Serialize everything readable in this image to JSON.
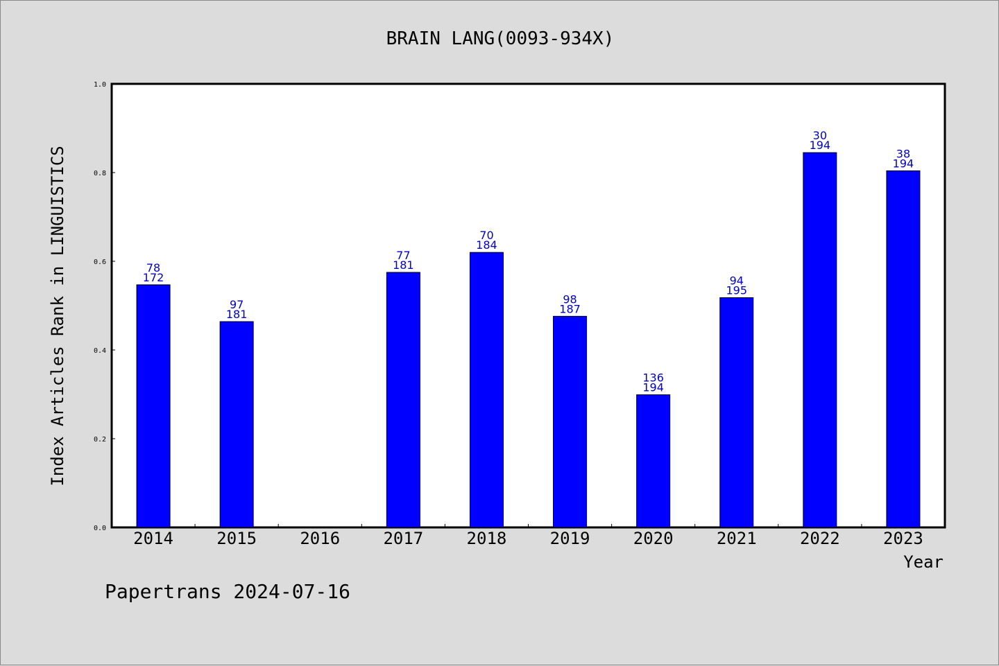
{
  "chart_data": {
    "type": "bar",
    "title": "BRAIN LANG(0093-934X)",
    "xlabel": "Year",
    "ylabel": "Index Articles Rank in LINGUISTICS",
    "ylim": [
      0,
      1.0
    ],
    "yticks": [
      "0.0",
      "0.2",
      "0.4",
      "0.6",
      "0.8",
      "1.0"
    ],
    "grid": false,
    "bar_color": "#0000ff",
    "label_color": "#0000cc",
    "categories": [
      "2014",
      "2015",
      "2016",
      "2017",
      "2018",
      "2019",
      "2020",
      "2021",
      "2022",
      "2023"
    ],
    "values": [
      0.547,
      0.464,
      null,
      0.575,
      0.62,
      0.476,
      0.299,
      0.518,
      0.845,
      0.804
    ],
    "rank": [
      "78",
      "97",
      "",
      "77",
      "70",
      "98",
      "136",
      "94",
      "30",
      "38"
    ],
    "total": [
      "172",
      "181",
      "",
      "181",
      "184",
      "187",
      "194",
      "195",
      "194",
      "194"
    ]
  },
  "footer": "Papertrans 2024-07-16"
}
